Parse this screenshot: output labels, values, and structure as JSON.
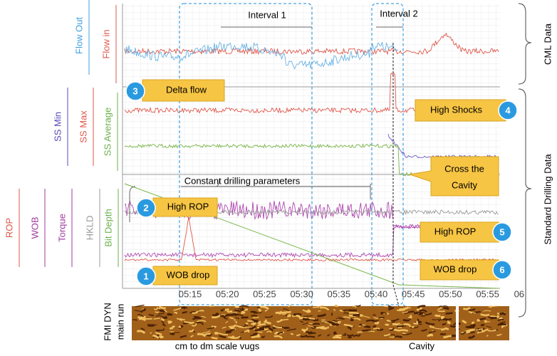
{
  "track_labels": {
    "top": [
      "Flow Out",
      "Flow in"
    ],
    "middle": [
      "SS Min",
      "SS Max",
      "SS Average"
    ],
    "bottom": [
      "ROP",
      "WOB",
      "Torque",
      "HKLD",
      "Bit Depth"
    ]
  },
  "group_labels": [
    "CML Data",
    "Standard Drilling Data"
  ],
  "intervals": [
    "Interval 1",
    "Interval 2"
  ],
  "time_ticks": [
    "05:15",
    "05:20",
    "05:25",
    "05:30",
    "05:35",
    "05:40",
    "05:45",
    "05:50",
    "05:55",
    "06"
  ],
  "annotation": "Constant drilling parameters",
  "callouts": [
    {
      "number": "1",
      "text": "WOB drop"
    },
    {
      "number": "2",
      "text": "High ROP"
    },
    {
      "number": "3",
      "text": "Delta flow"
    },
    {
      "number": "4",
      "text": "High Shocks"
    },
    {
      "number": "5",
      "text": "High ROP"
    },
    {
      "number": "6",
      "text": "WOB drop"
    }
  ],
  "cavity_note": [
    "Cross the",
    "Cavity"
  ],
  "image_label": [
    "FMI DYN",
    "main run"
  ],
  "image_captions": [
    "cm to dm scale vugs",
    "Cavity"
  ]
}
